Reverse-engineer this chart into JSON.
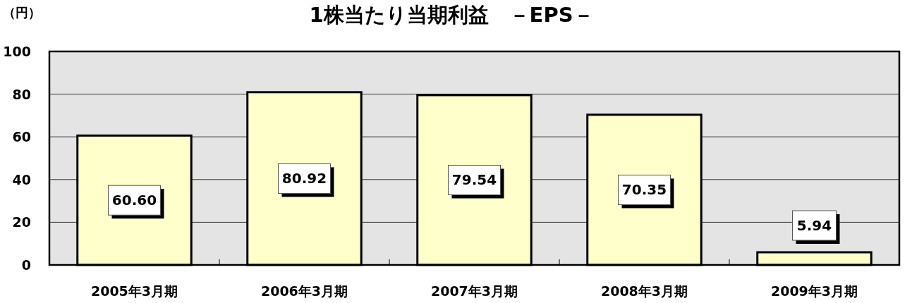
{
  "chart_data": {
    "type": "bar",
    "title": "1株当たり当期利益　－EPS－",
    "ylabel": "（円）",
    "categories": [
      "2005年3月期",
      "2006年3月期",
      "2007年3月期",
      "2008年3月期",
      "2009年3月期"
    ],
    "values": [
      60.6,
      80.92,
      79.54,
      70.35,
      5.94
    ],
    "value_labels": [
      "60.60",
      "80.92",
      "79.54",
      "70.35",
      "5.94"
    ],
    "color": "#ffffcc",
    "ylim": [
      0,
      100
    ],
    "yticks": [
      0,
      20,
      40,
      60,
      80,
      100
    ],
    "grid": "y"
  }
}
